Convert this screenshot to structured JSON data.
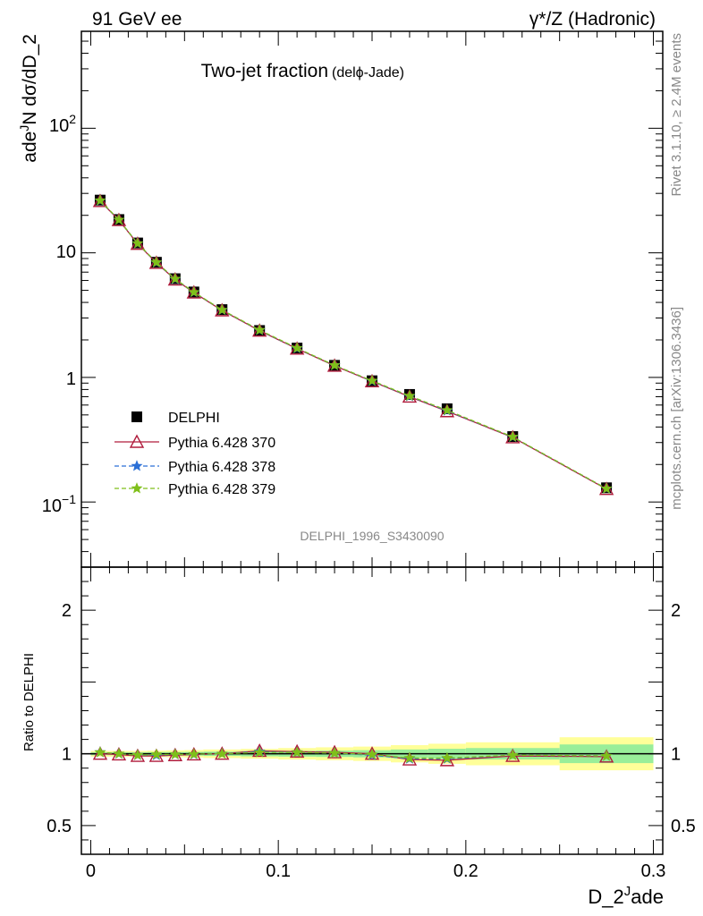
{
  "header": {
    "left_text": "91 GeV ee",
    "right_text": "γ*/Z (Hadronic)"
  },
  "side_labels": {
    "rivet": "Rivet 3.1.10, ≥ 2.4M events",
    "mcplots": "mcplots.cern.ch [arXiv:1306.3436]"
  },
  "chart_data": [
    {
      "type": "scatter",
      "panel": "main",
      "title": "Two-jet fraction",
      "title_suffix": "(delϕ-Jade)",
      "ylabel_base": "N dσ/dD_2",
      "ylabel_sup": "J",
      "ylabel_tail": "ade",
      "yscale": "log",
      "xlim": [
        -0.005,
        0.305
      ],
      "ylim": [
        0.03,
        600
      ],
      "ytick_labels": {
        "mantissa": "10",
        "exp_neg1": "−1",
        "one": "1",
        "ten": "10",
        "exp_2": "2"
      },
      "watermark": "DELPHI_1996_S3430090",
      "legend_position": "lower-left",
      "x": [
        0.005,
        0.015,
        0.025,
        0.035,
        0.045,
        0.055,
        0.07,
        0.09,
        0.11,
        0.13,
        0.15,
        0.17,
        0.19,
        0.225,
        0.275
      ],
      "series": [
        {
          "name": "DELPHI",
          "marker": "square",
          "color": "#000000",
          "values": [
            26.5,
            18.5,
            12.0,
            8.4,
            6.2,
            4.85,
            3.5,
            2.38,
            1.72,
            1.25,
            0.94,
            0.73,
            0.56,
            0.335,
            0.13
          ]
        },
        {
          "name": "Pythia 6.428 370",
          "marker": "triangle-open",
          "color": "#b01c3c",
          "line": "solid",
          "values": [
            26.0,
            18.3,
            11.8,
            8.3,
            6.1,
            4.8,
            3.45,
            2.37,
            1.7,
            1.24,
            0.93,
            0.7,
            0.535,
            0.33,
            0.127
          ]
        },
        {
          "name": "Pythia 6.428 378",
          "marker": "star",
          "color": "#2a6fd6",
          "line": "dashed",
          "values": [
            26.2,
            18.4,
            11.9,
            8.35,
            6.15,
            4.82,
            3.47,
            2.39,
            1.71,
            1.25,
            0.935,
            0.705,
            0.54,
            0.332,
            0.128
          ]
        },
        {
          "name": "Pythia 6.428 379",
          "marker": "star",
          "color": "#7fbf1a",
          "line": "dashed",
          "values": [
            26.3,
            18.4,
            11.9,
            8.38,
            6.18,
            4.83,
            3.48,
            2.4,
            1.72,
            1.25,
            0.94,
            0.71,
            0.545,
            0.333,
            0.128
          ]
        }
      ]
    },
    {
      "type": "line",
      "panel": "ratio",
      "ylabel": "Ratio to DELPHI",
      "xlabel_base": "D_2",
      "xlabel_sup": "J",
      "xlabel_tail": "ade",
      "xlim": [
        -0.005,
        0.305
      ],
      "ylim": [
        0.3,
        2.3
      ],
      "x_tick_labels": [
        "0",
        "0.1",
        "0.2",
        "0.3"
      ],
      "y_tick_labels": [
        "0.5",
        "1",
        "2"
      ],
      "y_tick_values": [
        0.5,
        1,
        2
      ],
      "x_tick_values": [
        0,
        0.1,
        0.2,
        0.3
      ],
      "reference": 1.0,
      "bin_edges": [
        0,
        0.01,
        0.02,
        0.03,
        0.04,
        0.05,
        0.06,
        0.08,
        0.1,
        0.12,
        0.14,
        0.16,
        0.18,
        0.2,
        0.25,
        0.3
      ],
      "band_inner": [
        0.01,
        0.01,
        0.01,
        0.012,
        0.012,
        0.013,
        0.015,
        0.018,
        0.02,
        0.022,
        0.025,
        0.03,
        0.035,
        0.04,
        0.065
      ],
      "band_outer": [
        0.02,
        0.02,
        0.02,
        0.022,
        0.024,
        0.026,
        0.03,
        0.034,
        0.04,
        0.045,
        0.05,
        0.06,
        0.07,
        0.08,
        0.115
      ],
      "x": [
        0.005,
        0.015,
        0.025,
        0.035,
        0.045,
        0.055,
        0.07,
        0.09,
        0.11,
        0.13,
        0.15,
        0.17,
        0.19,
        0.225,
        0.275
      ],
      "series": [
        {
          "name": "Pythia 6.428 370",
          "color": "#b01c3c",
          "values": [
            1.0,
            0.995,
            0.985,
            0.985,
            0.99,
            0.995,
            1.0,
            1.02,
            1.015,
            1.01,
            1.0,
            0.96,
            0.955,
            0.985,
            0.98
          ]
        },
        {
          "name": "Pythia 6.428 378",
          "color": "#2a6fd6",
          "values": [
            1.01,
            1.0,
            0.99,
            0.99,
            0.995,
            0.995,
            1.0,
            1.015,
            1.01,
            1.005,
            0.99,
            0.965,
            0.965,
            0.99,
            0.985
          ]
        },
        {
          "name": "Pythia 6.428 379",
          "color": "#7fbf1a",
          "values": [
            1.01,
            1.0,
            0.99,
            0.995,
            0.995,
            0.997,
            1.0,
            1.01,
            1.01,
            1.005,
            0.995,
            0.97,
            0.97,
            0.99,
            0.985
          ]
        }
      ]
    }
  ]
}
